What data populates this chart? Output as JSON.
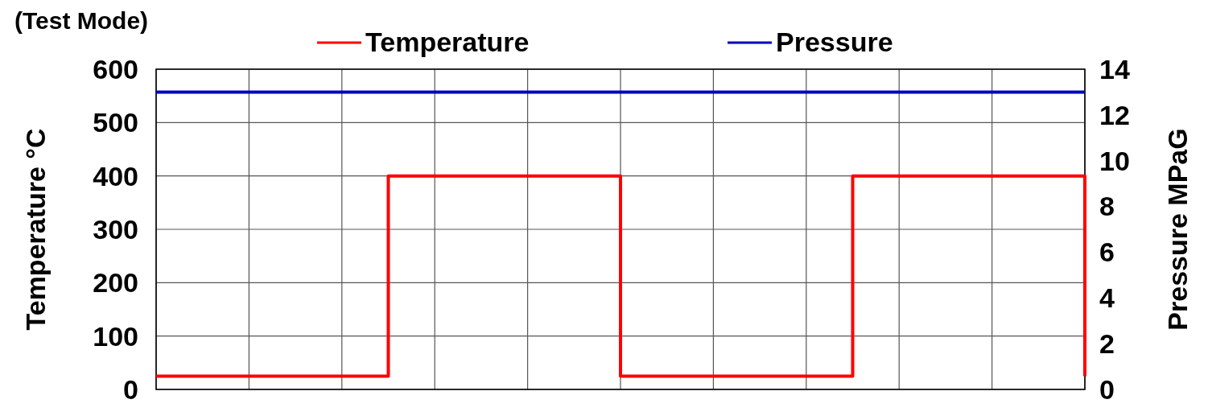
{
  "chart_data": {
    "type": "step",
    "title": "(Test Mode)",
    "ylabel": "Temperature  °C",
    "y2label": "Pressure  MPaG",
    "categories": [
      null,
      null,
      null,
      null,
      null,
      null,
      null,
      null,
      null,
      null,
      null,
      null,
      null,
      null,
      null,
      null,
      null,
      null,
      null,
      null,
      null
    ],
    "ylim": [
      0,
      600
    ],
    "yticks": [
      0,
      100,
      200,
      300,
      400,
      500,
      600
    ],
    "y2lim": [
      0,
      14
    ],
    "y2ticks": [
      0,
      2,
      4,
      6,
      8,
      10,
      12,
      14
    ],
    "grid": true,
    "legend": "top",
    "line_style": "solid",
    "marker": "none",
    "series": [
      {
        "name": "Temperature",
        "color": "#ff0000",
        "values": [
          25,
          25,
          25,
          25,
          25,
          400,
          400,
          400,
          400,
          400,
          25,
          25,
          25,
          25,
          25,
          400,
          400,
          400,
          400,
          400,
          25
        ]
      },
      {
        "name": "Pressure",
        "color": "#0000c0",
        "type": "line",
        "axis": "y2",
        "values": [
          13,
          13,
          13,
          13,
          13,
          13,
          13,
          13,
          13,
          13,
          13,
          13,
          13,
          13,
          13,
          13,
          13,
          13,
          13,
          13,
          13
        ]
      }
    ]
  }
}
